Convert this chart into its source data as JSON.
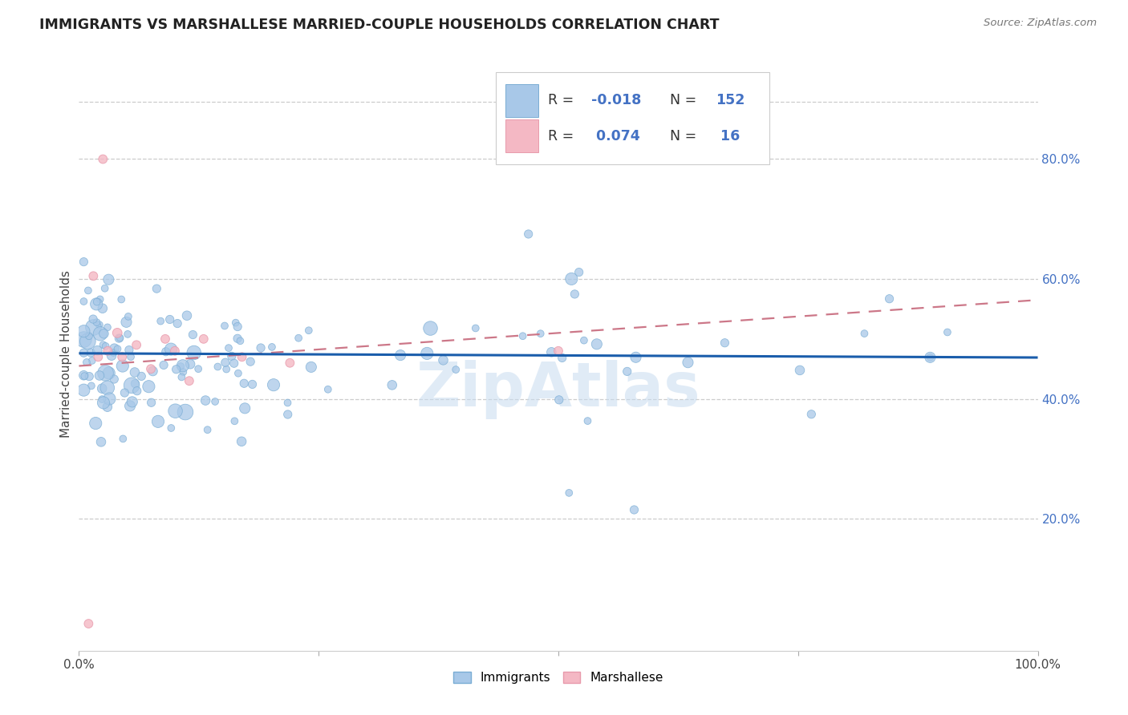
{
  "title": "IMMIGRANTS VS MARSHALLESE MARRIED-COUPLE HOUSEHOLDS CORRELATION CHART",
  "source": "Source: ZipAtlas.com",
  "ylabel": "Married-couple Households",
  "ytick_values": [
    0.2,
    0.4,
    0.6,
    0.8
  ],
  "ytick_labels": [
    "20.0%",
    "40.0%",
    "60.0%",
    "80.0%"
  ],
  "xlim": [
    0.0,
    1.0
  ],
  "ylim": [
    -0.02,
    0.97
  ],
  "legend_r_blue": "-0.018",
  "legend_n_blue": "152",
  "legend_r_pink": " 0.074",
  "legend_n_pink": " 16",
  "blue_color": "#A8C8E8",
  "blue_edge_color": "#7AADD4",
  "pink_color": "#F4B8C4",
  "pink_edge_color": "#E89AAC",
  "trendline_blue_color": "#1A5DAB",
  "trendline_pink_color": "#CC7788",
  "watermark_color": "#C8DCF0",
  "grid_color": "#CCCCCC",
  "right_tick_color": "#4472C4",
  "background_color": "#FFFFFF",
  "blue_trend_y0": 0.476,
  "blue_trend_y1": 0.469,
  "pink_trend_x0": 0.0,
  "pink_trend_y0": 0.455,
  "pink_trend_x1": 1.0,
  "pink_trend_y1": 0.565
}
